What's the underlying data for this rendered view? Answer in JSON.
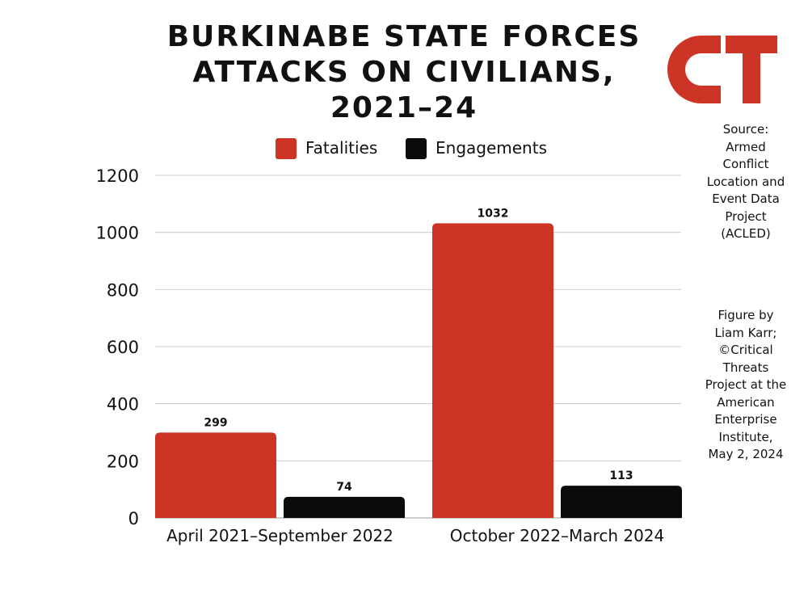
{
  "title_lines": [
    "BURKINABE STATE FORCES",
    "ATTACKS ON CIVILIANS,",
    "2021–24"
  ],
  "logo": {
    "text": "CT",
    "color": "#cc3526"
  },
  "source_lines": [
    "Source:",
    "Armed",
    "Conflict",
    "Location and",
    "Event Data",
    "Project",
    "(ACLED)"
  ],
  "credit_lines": [
    "Figure by",
    "Liam Karr;",
    "©Critical",
    "Threats",
    "Project at the",
    "American",
    "Enterprise",
    "Institute,",
    "May 2, 2024"
  ],
  "colors": {
    "fatalities": "#cc3526",
    "engagements": "#0b0b0b",
    "grid": "#cccccc",
    "text": "#111111"
  },
  "chart_data": {
    "type": "bar",
    "title": "BURKINABE STATE FORCES ATTACKS ON CIVILIANS, 2021–24",
    "categories": [
      "April 2021–September 2022",
      "October 2022–March 2024"
    ],
    "series": [
      {
        "name": "Fatalities",
        "values": [
          299,
          1032
        ],
        "color": "#cc3526"
      },
      {
        "name": "Engagements",
        "values": [
          74,
          113
        ],
        "color": "#0b0b0b"
      }
    ],
    "yticks": [
      "0",
      "200",
      "400",
      "600",
      "800",
      "1000",
      "1200"
    ],
    "ylim": [
      0,
      1200
    ],
    "xlabel": "",
    "ylabel": "",
    "grid": true,
    "legend_position": "top"
  }
}
